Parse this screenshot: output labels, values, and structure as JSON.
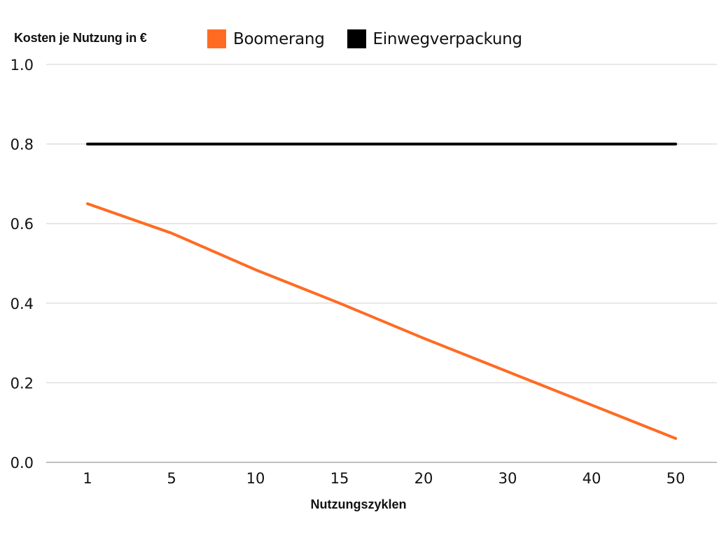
{
  "chart_data": {
    "type": "line",
    "ylabel": "Kosten je Nutzung in €",
    "xlabel": "Nutzungszyklen",
    "categories": [
      "1",
      "5",
      "10",
      "15",
      "20",
      "30",
      "40",
      "50"
    ],
    "y_ticks": [
      "0.0",
      "0.2",
      "0.4",
      "0.6",
      "0.8",
      "1.0"
    ],
    "ylim": [
      0,
      1.0
    ],
    "grid": true,
    "legend_position": "top",
    "series": [
      {
        "name": "Boomerang",
        "color": "#FF6B22",
        "values": [
          0.65,
          0.576,
          0.484,
          0.4,
          0.312,
          0.228,
          0.144,
          0.06
        ]
      },
      {
        "name": "Einwegverpackung",
        "color": "#000000",
        "values": [
          0.8,
          0.8,
          0.8,
          0.8,
          0.8,
          0.8,
          0.8,
          0.8
        ]
      }
    ]
  }
}
